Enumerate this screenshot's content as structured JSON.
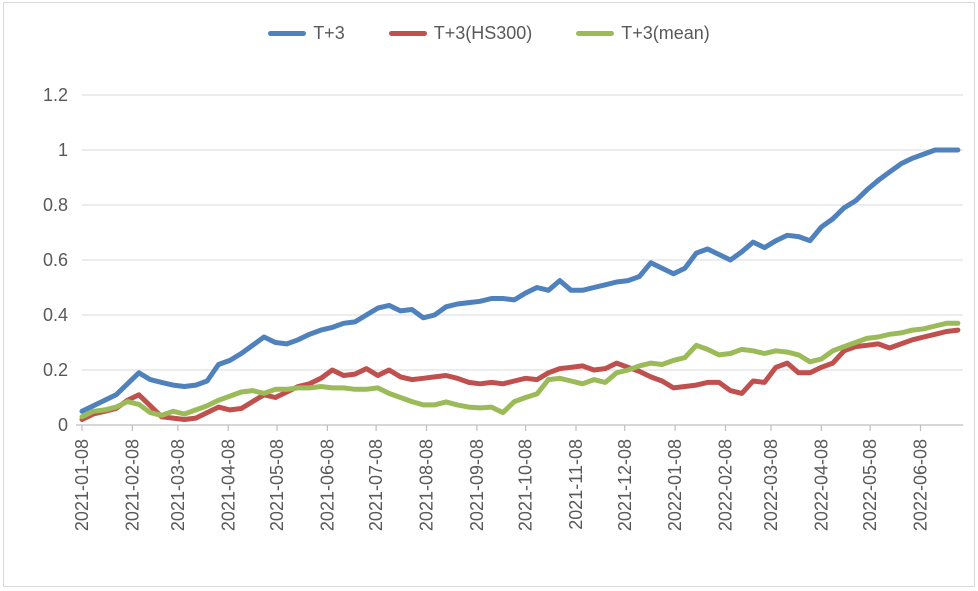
{
  "chart_data": {
    "type": "line",
    "title": "",
    "xlabel": "",
    "ylabel": "",
    "ylim": [
      0,
      1.2
    ],
    "grid": "horizontal",
    "legend_position": "top",
    "y_ticks": [
      0,
      0.2,
      0.4,
      0.6,
      0.8,
      1,
      1.2
    ],
    "y_tick_labels": [
      "0",
      "0.2",
      "0.4",
      "0.6",
      "0.8",
      "1",
      "1.2"
    ],
    "x_tick_labels": [
      "2021-01-08",
      "2021-02-08",
      "2021-03-08",
      "2021-04-08",
      "2021-05-08",
      "2021-06-08",
      "2021-07-08",
      "2021-08-08",
      "2021-09-08",
      "2021-10-08",
      "2021-11-08",
      "2021-12-08",
      "2022-01-08",
      "2022-02-08",
      "2022-03-08",
      "2022-04-08",
      "2022-05-08",
      "2022-06-08"
    ],
    "x": [
      "2021-01-08",
      "2021-01-15",
      "2021-01-22",
      "2021-01-29",
      "2021-02-05",
      "2021-02-12",
      "2021-02-19",
      "2021-02-26",
      "2021-03-05",
      "2021-03-12",
      "2021-03-19",
      "2021-03-26",
      "2021-04-02",
      "2021-04-09",
      "2021-04-16",
      "2021-04-23",
      "2021-04-30",
      "2021-05-07",
      "2021-05-14",
      "2021-05-21",
      "2021-05-28",
      "2021-06-04",
      "2021-06-11",
      "2021-06-18",
      "2021-06-25",
      "2021-07-02",
      "2021-07-09",
      "2021-07-16",
      "2021-07-23",
      "2021-07-30",
      "2021-08-06",
      "2021-08-13",
      "2021-08-20",
      "2021-08-27",
      "2021-09-03",
      "2021-09-10",
      "2021-09-17",
      "2021-09-24",
      "2021-10-01",
      "2021-10-08",
      "2021-10-15",
      "2021-10-22",
      "2021-10-29",
      "2021-11-05",
      "2021-11-12",
      "2021-11-19",
      "2021-11-26",
      "2021-12-03",
      "2021-12-10",
      "2021-12-17",
      "2021-12-24",
      "2021-12-31",
      "2022-01-07",
      "2022-01-14",
      "2022-01-21",
      "2022-01-28",
      "2022-02-04",
      "2022-02-11",
      "2022-02-18",
      "2022-02-25",
      "2022-03-04",
      "2022-03-11",
      "2022-03-18",
      "2022-03-25",
      "2022-04-01",
      "2022-04-08",
      "2022-04-15",
      "2022-04-22",
      "2022-04-29",
      "2022-05-06",
      "2022-05-13",
      "2022-05-20",
      "2022-05-27",
      "2022-06-03",
      "2022-06-10",
      "2022-06-17",
      "2022-06-24",
      "2022-07-01"
    ],
    "series": [
      {
        "name": "T+3",
        "color": "#4F81BD",
        "values": [
          0.05,
          0.07,
          0.09,
          0.11,
          0.15,
          0.19,
          0.165,
          0.155,
          0.145,
          0.14,
          0.145,
          0.16,
          0.22,
          0.235,
          0.26,
          0.29,
          0.32,
          0.3,
          0.295,
          0.31,
          0.33,
          0.345,
          0.355,
          0.37,
          0.375,
          0.4,
          0.425,
          0.435,
          0.415,
          0.42,
          0.39,
          0.4,
          0.43,
          0.44,
          0.445,
          0.45,
          0.46,
          0.46,
          0.455,
          0.48,
          0.5,
          0.49,
          0.525,
          0.49,
          0.49,
          0.5,
          0.51,
          0.52,
          0.525,
          0.54,
          0.59,
          0.57,
          0.55,
          0.57,
          0.625,
          0.64,
          0.62,
          0.6,
          0.63,
          0.665,
          0.645,
          0.67,
          0.69,
          0.685,
          0.67,
          0.72,
          0.75,
          0.79,
          0.815,
          0.855,
          0.89,
          0.92,
          0.95,
          0.97,
          0.985,
          1.0,
          1.0,
          1.0
        ]
      },
      {
        "name": "T+3(HS300)",
        "color": "#C0504D",
        "values": [
          0.02,
          0.04,
          0.05,
          0.06,
          0.09,
          0.11,
          0.07,
          0.03,
          0.025,
          0.02,
          0.025,
          0.045,
          0.065,
          0.055,
          0.06,
          0.085,
          0.11,
          0.1,
          0.12,
          0.14,
          0.15,
          0.17,
          0.2,
          0.18,
          0.185,
          0.205,
          0.18,
          0.2,
          0.175,
          0.165,
          0.17,
          0.175,
          0.18,
          0.17,
          0.155,
          0.15,
          0.155,
          0.15,
          0.16,
          0.17,
          0.165,
          0.19,
          0.205,
          0.21,
          0.215,
          0.2,
          0.205,
          0.225,
          0.21,
          0.195,
          0.175,
          0.16,
          0.135,
          0.14,
          0.145,
          0.155,
          0.155,
          0.125,
          0.115,
          0.16,
          0.155,
          0.21,
          0.225,
          0.19,
          0.19,
          0.21,
          0.225,
          0.27,
          0.285,
          0.29,
          0.295,
          0.28,
          0.295,
          0.31,
          0.32,
          0.33,
          0.34,
          0.345
        ]
      },
      {
        "name": "T+3(mean)",
        "color": "#9BBB59",
        "values": [
          0.03,
          0.05,
          0.055,
          0.065,
          0.085,
          0.075,
          0.045,
          0.035,
          0.05,
          0.04,
          0.055,
          0.07,
          0.09,
          0.105,
          0.12,
          0.125,
          0.115,
          0.13,
          0.13,
          0.135,
          0.135,
          0.14,
          0.135,
          0.135,
          0.13,
          0.13,
          0.135,
          0.115,
          0.1,
          0.085,
          0.073,
          0.073,
          0.084,
          0.073,
          0.065,
          0.062,
          0.065,
          0.045,
          0.085,
          0.1,
          0.113,
          0.165,
          0.17,
          0.16,
          0.15,
          0.165,
          0.155,
          0.19,
          0.2,
          0.215,
          0.225,
          0.22,
          0.235,
          0.245,
          0.29,
          0.275,
          0.255,
          0.26,
          0.275,
          0.27,
          0.26,
          0.27,
          0.265,
          0.255,
          0.23,
          0.24,
          0.27,
          0.285,
          0.3,
          0.315,
          0.32,
          0.33,
          0.335,
          0.345,
          0.35,
          0.36,
          0.37,
          0.37
        ]
      }
    ],
    "style": {
      "gridline_color": "#d9d9d9",
      "axis_line_color": "#bfbfbf",
      "tick_label_color": "#595959",
      "background": "#ffffff"
    }
  }
}
